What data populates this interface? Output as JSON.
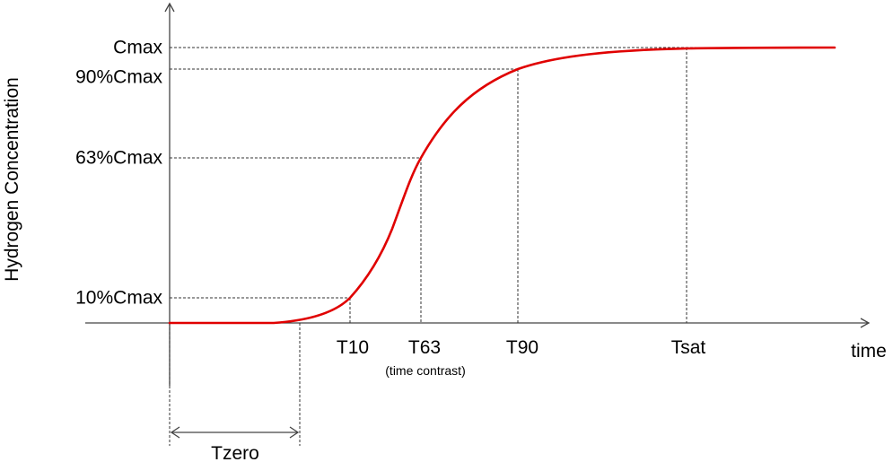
{
  "diagram": {
    "y_axis_label": "Hydrogen Concentration",
    "x_axis_label": "time",
    "y_levels": {
      "cmax": "Cmax",
      "c90": "90%Cmax",
      "c63": "63%Cmax",
      "c10": "10%Cmax"
    },
    "x_points": {
      "t10": "T10",
      "t63": "T63",
      "t63_note": "(time contrast)",
      "t90": "T90",
      "tsat": "Tsat"
    },
    "interval_label": "Tzero",
    "curve_color": "#e00000"
  }
}
